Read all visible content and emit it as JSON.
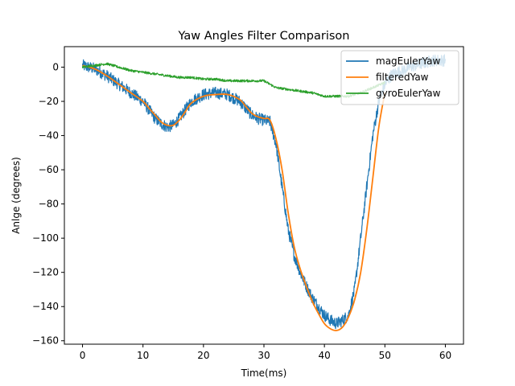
{
  "chart_data": {
    "type": "line",
    "title": "Yaw Angles Filter Comparison",
    "xlabel": "Time(ms)",
    "ylabel": "Anlge (degrees)",
    "xlim": [
      -3,
      63
    ],
    "ylim": [
      -162,
      12
    ],
    "xticks": [
      0,
      10,
      20,
      30,
      40,
      50,
      60
    ],
    "yticks": [
      0,
      -20,
      -40,
      -60,
      -80,
      -100,
      -120,
      -140,
      -160
    ],
    "xtick_labels": [
      "0",
      "10",
      "20",
      "30",
      "40",
      "50",
      "60"
    ],
    "ytick_labels": [
      "0",
      "−20",
      "−40",
      "−60",
      "−80",
      "−100",
      "−120",
      "−140",
      "−160"
    ],
    "grid": false,
    "legend_position": "top-right",
    "series": [
      {
        "name": "magEulerYaw",
        "color": "#1f77b4",
        "noise": 3.5,
        "x": [
          0,
          2,
          4,
          6,
          8,
          10,
          11,
          12,
          13,
          14,
          15,
          16,
          17,
          18,
          20,
          22,
          24,
          26,
          27,
          28,
          29,
          30,
          31,
          32,
          33,
          34,
          35,
          36,
          37,
          38,
          39,
          40,
          41,
          42,
          43,
          44,
          45,
          46,
          47,
          48,
          49,
          50,
          51,
          52,
          53,
          54,
          55,
          56,
          57,
          58,
          59,
          60
        ],
        "y": [
          1,
          -1,
          -5,
          -10,
          -15,
          -20,
          -25,
          -30,
          -33,
          -35,
          -34,
          -30,
          -25,
          -20,
          -16,
          -15,
          -16,
          -20,
          -24,
          -28,
          -30,
          -31,
          -32,
          -45,
          -70,
          -95,
          -110,
          -120,
          -128,
          -135,
          -140,
          -145,
          -148,
          -150,
          -148,
          -145,
          -130,
          -100,
          -70,
          -40,
          -20,
          -10,
          -5,
          -3,
          -2,
          0,
          1,
          2,
          3,
          4,
          4,
          4
        ]
      },
      {
        "name": "filteredYaw",
        "color": "#ff7f0e",
        "noise": 0,
        "x": [
          0,
          2,
          4,
          6,
          8,
          10,
          11,
          12,
          13,
          14,
          15,
          16,
          17,
          18,
          20,
          22,
          24,
          26,
          27,
          28,
          29,
          30,
          31,
          32,
          33,
          34,
          35,
          36,
          37,
          38,
          39,
          40,
          41,
          42,
          43,
          44,
          45,
          46,
          47,
          48,
          49,
          50
        ],
        "y": [
          1,
          -1,
          -5,
          -10,
          -15,
          -20,
          -24,
          -28,
          -32,
          -34,
          -34,
          -31,
          -26,
          -21,
          -17,
          -16,
          -16,
          -19,
          -23,
          -27,
          -29,
          -30,
          -31,
          -42,
          -60,
          -85,
          -105,
          -118,
          -128,
          -137,
          -144,
          -150,
          -153,
          -154,
          -152,
          -146,
          -136,
          -120,
          -95,
          -65,
          -35,
          -15
        ]
      },
      {
        "name": "gyroEulerYaw",
        "color": "#2ca02c",
        "noise": 0.7,
        "x": [
          0,
          2,
          4,
          6,
          8,
          10,
          12,
          14,
          16,
          18,
          20,
          22,
          24,
          26,
          28,
          30,
          32,
          34,
          36,
          38,
          40,
          42,
          44,
          46,
          48,
          50
        ],
        "y": [
          0,
          1,
          2,
          0,
          -2,
          -3,
          -4,
          -5,
          -6,
          -6,
          -7,
          -7,
          -8,
          -8,
          -8,
          -8,
          -12,
          -13,
          -14,
          -15,
          -17,
          -17,
          -17,
          -15,
          -12,
          -9
        ]
      }
    ]
  }
}
